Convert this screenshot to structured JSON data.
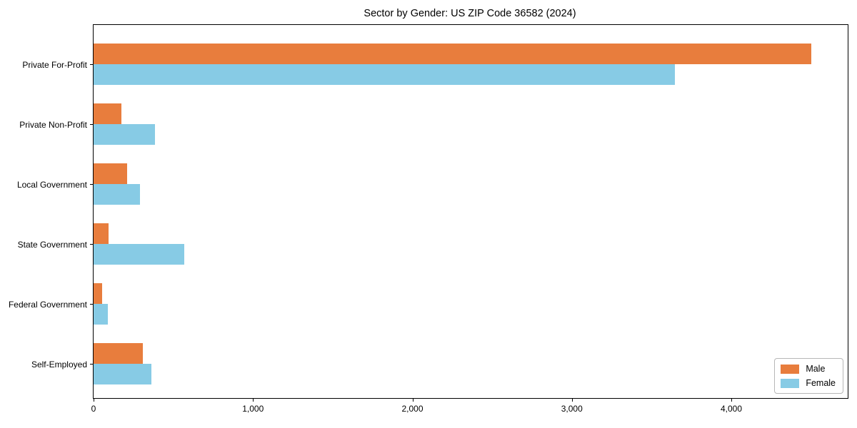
{
  "title": "Sector by Gender: US ZIP Code 36582 (2024)",
  "chart_data": {
    "type": "bar",
    "orientation": "horizontal",
    "title": "Sector by Gender: US ZIP Code 36582 (2024)",
    "categories": [
      "Private For-Profit",
      "Private Non-Profit",
      "Local Government",
      "State Government",
      "Federal Government",
      "Self-Employed"
    ],
    "series": [
      {
        "name": "Male",
        "color": "#E87D3D",
        "values": [
          4500,
          175,
          210,
          95,
          55,
          310
        ]
      },
      {
        "name": "Female",
        "color": "#87CBE5",
        "values": [
          3645,
          385,
          290,
          570,
          90,
          365
        ]
      }
    ],
    "xlabel": "",
    "ylabel": "",
    "xlim": [
      0,
      4730
    ],
    "xticks": [
      {
        "value": 0,
        "label": "0"
      },
      {
        "value": 1000,
        "label": "1,000"
      },
      {
        "value": 2000,
        "label": "2,000"
      },
      {
        "value": 3000,
        "label": "3,000"
      },
      {
        "value": 4000,
        "label": "4,000"
      }
    ],
    "grid": false,
    "legend": {
      "position": "lower right",
      "entries": [
        {
          "label": "Male",
          "color": "#E87D3D"
        },
        {
          "label": "Female",
          "color": "#87CBE5"
        }
      ]
    }
  }
}
